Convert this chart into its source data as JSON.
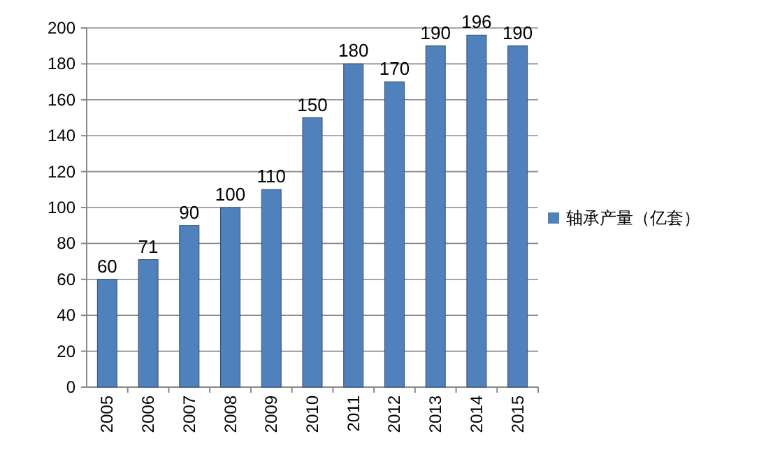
{
  "chart_data": {
    "type": "bar",
    "categories": [
      "2005",
      "2006",
      "2007",
      "2008",
      "2009",
      "2010",
      "2011",
      "2012",
      "2013",
      "2014",
      "2015"
    ],
    "series": [
      {
        "name": "轴承产量（亿套）",
        "color": "#4f81bd",
        "values": [
          60,
          71,
          90,
          100,
          110,
          150,
          180,
          170,
          190,
          196,
          190
        ]
      }
    ],
    "ylim": [
      0,
      200
    ],
    "yticks": [
      0,
      20,
      40,
      60,
      80,
      100,
      120,
      140,
      160,
      180,
      200
    ],
    "grid": "y",
    "legend": "right",
    "data_labels": true
  }
}
